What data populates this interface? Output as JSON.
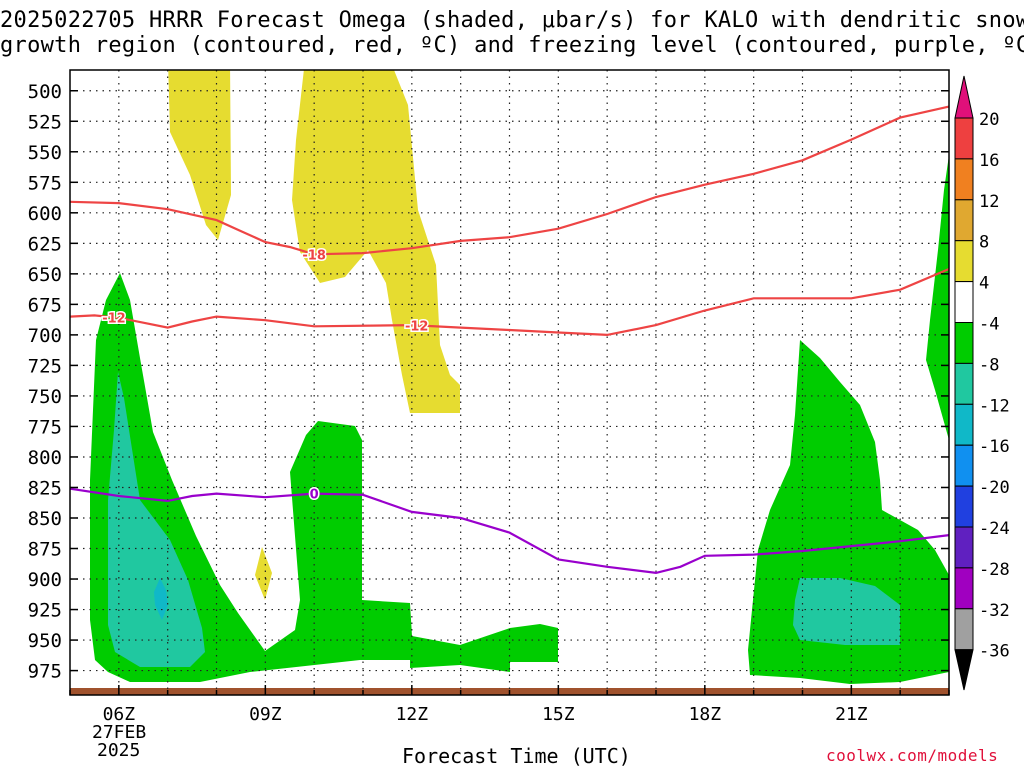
{
  "title": {
    "line1": "2025022705 HRRR Forecast Omega (shaded, μbar/s) for KALO with dendritic snow",
    "line2": "growth region (contoured, red, ºC) and freezing level (contoured, purple, ºC)"
  },
  "xlabel": "Forecast Time (UTC)",
  "credit": "coolwx.com/models",
  "x_date_line1": "27FEB",
  "x_date_line2": "2025",
  "colors": {
    "omega_pos4_8": "#e6dc30",
    "omega_neg4_8": "#00cc00",
    "omega_neg8_12": "#20c8a0",
    "omega_neg12_16": "#10b8c8",
    "dgz_contour": "#ee4444",
    "freezing_contour": "#9900cc",
    "ground": "#a0522d"
  },
  "chart_data": {
    "type": "time-height cross section",
    "x": {
      "label": "Forecast Time (UTC)",
      "ticks": [
        "06Z",
        "09Z",
        "12Z",
        "15Z",
        "18Z",
        "21Z"
      ],
      "range_hours": [
        5,
        23
      ]
    },
    "y": {
      "unit": "hPa",
      "ticks": [
        500,
        525,
        550,
        575,
        600,
        625,
        650,
        675,
        700,
        725,
        750,
        775,
        800,
        825,
        850,
        875,
        900,
        925,
        950,
        975
      ],
      "range": [
        483,
        995
      ],
      "reversed": true
    },
    "colorbar": {
      "variable": "Omega",
      "unit": "μbar/s",
      "labels": [
        "20",
        "16",
        "12",
        "8",
        "4",
        "-4",
        "-8",
        "-12",
        "-16",
        "-20",
        "-24",
        "-28",
        "-32",
        "-36"
      ],
      "bins": [
        {
          "range": [
            16,
            20
          ],
          "color": "#ee4040"
        },
        {
          "range": [
            12,
            16
          ],
          "color": "#f08020"
        },
        {
          "range": [
            8,
            12
          ],
          "color": "#e0a830"
        },
        {
          "range": [
            4,
            8
          ],
          "color": "#e6dc30"
        },
        {
          "range": [
            -4,
            4
          ],
          "color": "#ffffff"
        },
        {
          "range": [
            -8,
            -4
          ],
          "color": "#00cc00"
        },
        {
          "range": [
            -12,
            -8
          ],
          "color": "#20c8a0"
        },
        {
          "range": [
            -16,
            -12
          ],
          "color": "#10b8c8"
        },
        {
          "range": [
            -20,
            -16
          ],
          "color": "#1090f0"
        },
        {
          "range": [
            -24,
            -20
          ],
          "color": "#2040e0"
        },
        {
          "range": [
            -28,
            -24
          ],
          "color": "#6020c0"
        },
        {
          "range": [
            -32,
            -28
          ],
          "color": "#a000c0"
        },
        {
          "range": [
            -36,
            -32
          ],
          "color": "#a0a0a0"
        }
      ],
      "top_arrow_color": "#e0107a",
      "bottom_arrow_color": "#000000"
    },
    "contours": [
      {
        "name": "-18 ºC",
        "label": "-18",
        "color": "#ee4444",
        "points": [
          [
            5,
            591
          ],
          [
            6,
            592
          ],
          [
            7,
            597
          ],
          [
            8,
            606
          ],
          [
            8.5,
            615
          ],
          [
            9,
            624
          ],
          [
            9.5,
            628
          ],
          [
            10,
            634
          ],
          [
            11,
            633
          ],
          [
            12,
            629
          ],
          [
            13,
            623
          ],
          [
            14,
            620
          ],
          [
            15,
            613
          ],
          [
            16,
            601
          ],
          [
            17,
            587
          ],
          [
            18,
            577
          ],
          [
            19,
            568
          ],
          [
            20,
            557
          ],
          [
            21,
            540
          ],
          [
            22,
            522
          ],
          [
            23,
            513
          ]
        ]
      },
      {
        "name": "-12 ºC",
        "label": "-12",
        "color": "#ee4444",
        "points": [
          [
            5,
            685
          ],
          [
            5.5,
            684
          ],
          [
            6,
            686
          ],
          [
            6.5,
            690
          ],
          [
            7,
            694
          ],
          [
            7.5,
            689
          ],
          [
            8,
            685
          ],
          [
            9,
            688
          ],
          [
            10,
            693
          ],
          [
            12,
            692
          ],
          [
            13,
            694
          ],
          [
            14,
            696
          ],
          [
            15,
            698
          ],
          [
            16,
            700
          ],
          [
            17,
            692
          ],
          [
            18,
            680
          ],
          [
            19,
            670
          ],
          [
            20,
            670
          ],
          [
            21,
            670
          ],
          [
            22,
            663
          ],
          [
            23,
            646
          ]
        ]
      },
      {
        "name": "0 ºC",
        "label": "0",
        "color": "#9900cc",
        "points": [
          [
            5,
            826
          ],
          [
            6,
            832
          ],
          [
            7,
            836
          ],
          [
            7.5,
            832
          ],
          [
            8,
            830
          ],
          [
            9,
            833
          ],
          [
            10,
            830
          ],
          [
            11,
            831
          ],
          [
            12,
            845
          ],
          [
            13,
            850
          ],
          [
            14,
            862
          ],
          [
            15,
            884
          ],
          [
            16,
            890
          ],
          [
            17,
            895
          ],
          [
            17.5,
            890
          ],
          [
            18,
            881
          ],
          [
            19,
            880
          ],
          [
            20,
            877
          ],
          [
            21,
            873
          ],
          [
            22,
            869
          ],
          [
            23,
            864
          ]
        ]
      }
    ]
  }
}
